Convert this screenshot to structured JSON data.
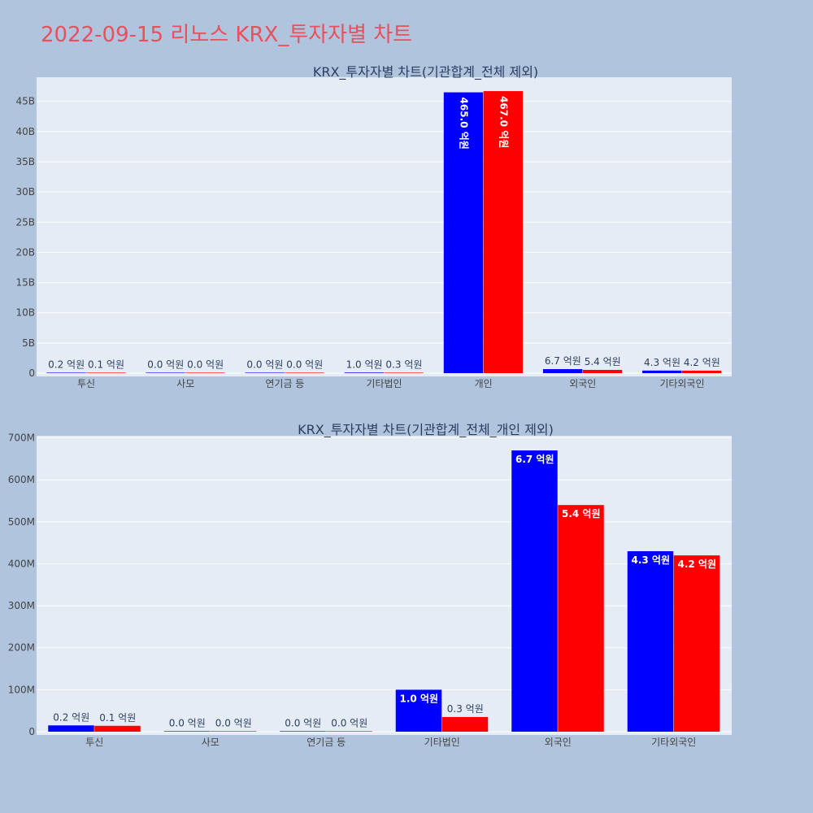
{
  "page": {
    "title": "2022-09-15 리노스 KRX_투자자별 차트"
  },
  "colors": {
    "buy": "#0000ff",
    "sell": "#ff0000",
    "plot_bg": "#e5ecf6",
    "page_bg": "#b0c4de",
    "title": "#e8505b"
  },
  "chart_data": [
    {
      "type": "bar",
      "title": "KRX_투자자별 차트(기관합계_전체 제외)",
      "categories": [
        "투신",
        "사모",
        "연기금 등",
        "기타법인",
        "개인",
        "외국인",
        "기타외국인"
      ],
      "series": [
        {
          "values": [
            15000000,
            1000000,
            1000000,
            100000000,
            46500000000,
            670000000,
            430000000
          ],
          "labels": [
            "0.2 억원",
            "0.0 억원",
            "0.0 억원",
            "1.0 억원",
            "465.0 억원",
            "6.7 억원",
            "4.3 억원"
          ]
        },
        {
          "values": [
            14000000,
            1000000,
            1000000,
            35000000,
            46700000000,
            540000000,
            420000000
          ],
          "labels": [
            "0.1 억원",
            "0.0 억원",
            "0.0 억원",
            "0.3 억원",
            "467.0 억원",
            "5.4 억원",
            "4.2 억원"
          ]
        }
      ],
      "y_ticks": [
        {
          "value": 0,
          "label": "0"
        },
        {
          "value": 5000000000,
          "label": "5B"
        },
        {
          "value": 10000000000,
          "label": "10B"
        },
        {
          "value": 15000000000,
          "label": "15B"
        },
        {
          "value": 20000000000,
          "label": "20B"
        },
        {
          "value": 25000000000,
          "label": "25B"
        },
        {
          "value": 30000000000,
          "label": "30B"
        },
        {
          "value": 35000000000,
          "label": "35B"
        },
        {
          "value": 40000000000,
          "label": "40B"
        },
        {
          "value": 45000000000,
          "label": "45B"
        }
      ],
      "ylim": [
        0,
        49000000000
      ],
      "grid": true
    },
    {
      "type": "bar",
      "title": "KRX_투자자별 차트(기관합계_전체_개인 제외)",
      "categories": [
        "투신",
        "사모",
        "연기금 등",
        "기타법인",
        "외국인",
        "기타외국인"
      ],
      "series": [
        {
          "values": [
            15000000,
            1000000,
            1000000,
            100000000,
            670000000,
            430000000
          ],
          "labels": [
            "0.2 억원",
            "0.0 억원",
            "0.0 억원",
            "1.0 억원",
            "6.7 억원",
            "4.3 억원"
          ]
        },
        {
          "values": [
            14000000,
            1000000,
            1000000,
            35000000,
            540000000,
            420000000
          ],
          "labels": [
            "0.1 억원",
            "0.0 억원",
            "0.0 억원",
            "0.3 억원",
            "5.4 억원",
            "4.2 억원"
          ]
        }
      ],
      "y_ticks": [
        {
          "value": 0,
          "label": "0"
        },
        {
          "value": 100000000,
          "label": "100M"
        },
        {
          "value": 200000000,
          "label": "200M"
        },
        {
          "value": 300000000,
          "label": "300M"
        },
        {
          "value": 400000000,
          "label": "400M"
        },
        {
          "value": 500000000,
          "label": "500M"
        },
        {
          "value": 600000000,
          "label": "600M"
        },
        {
          "value": 700000000,
          "label": "700M"
        }
      ],
      "ylim": [
        0,
        705000000
      ],
      "grid": true
    }
  ]
}
